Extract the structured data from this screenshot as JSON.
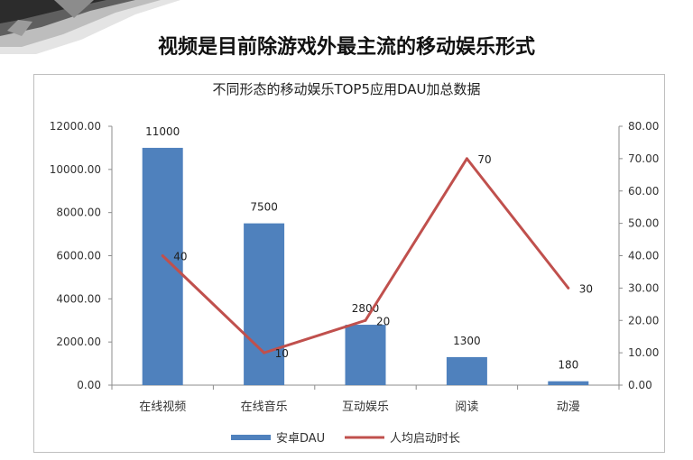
{
  "headline": "视频是目前除游戏外最主流的移动娱乐形式",
  "chart_data": {
    "type": "bar",
    "title": "不同形态的移动娱乐TOP5应用DAU加总数据",
    "categories": [
      "在线视频",
      "在线音乐",
      "互动娱乐",
      "阅读",
      "动漫"
    ],
    "series": [
      {
        "name": "安卓DAU",
        "type": "bar",
        "axis": "left",
        "color": "#4f81bd",
        "values": [
          11000,
          7500,
          2800,
          1300,
          180
        ],
        "labels": [
          "11000",
          "7500",
          "2800",
          "1300",
          "180"
        ]
      },
      {
        "name": "人均启动时长",
        "type": "line",
        "axis": "right",
        "color": "#c0504d",
        "values": [
          40,
          10,
          20,
          70,
          30
        ],
        "labels": [
          "40",
          "10",
          "20",
          "70",
          "30"
        ]
      }
    ],
    "y_left": {
      "ylim": [
        0,
        12000
      ],
      "ticks": [
        "0.00",
        "2000.00",
        "4000.00",
        "6000.00",
        "8000.00",
        "10000.00",
        "12000.00"
      ]
    },
    "y_right": {
      "ylim": [
        0,
        80
      ],
      "ticks": [
        "0.00",
        "10.00",
        "20.00",
        "30.00",
        "40.00",
        "50.00",
        "60.00",
        "70.00",
        "80.00"
      ]
    },
    "legend_position": "bottom"
  }
}
